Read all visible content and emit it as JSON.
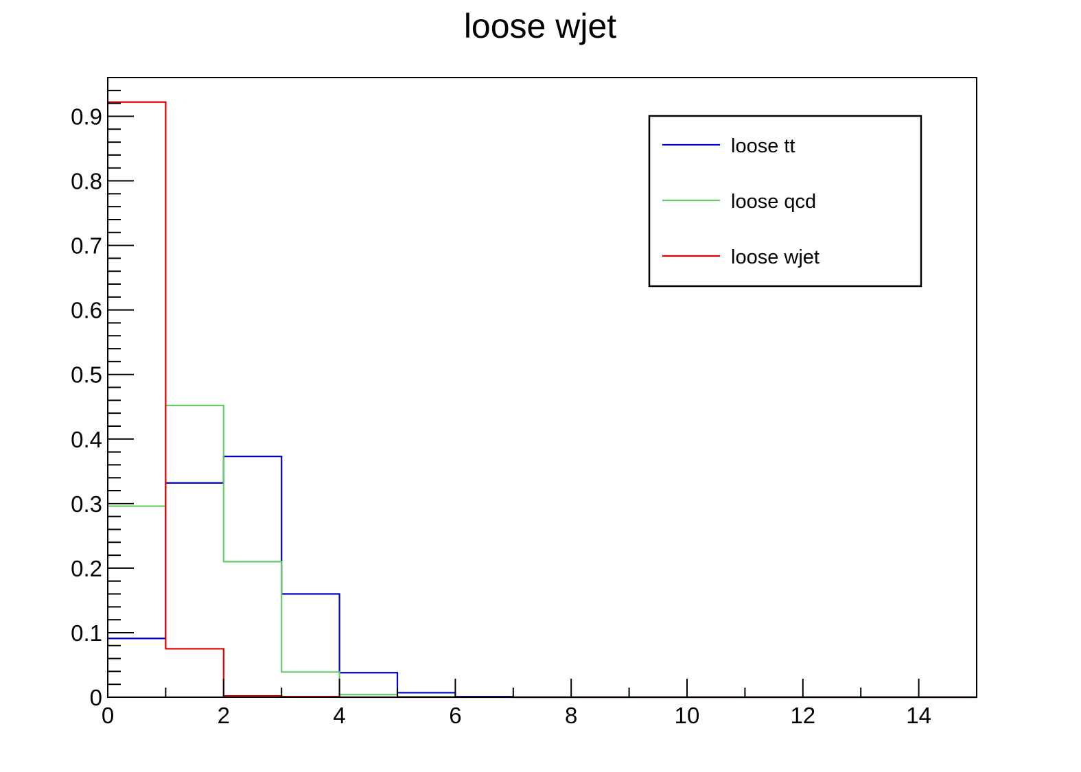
{
  "chart_data": {
    "type": "line",
    "subtype": "step-histogram",
    "title": "loose wjet",
    "xlabel": "",
    "ylabel": "",
    "xlim": [
      0,
      15
    ],
    "ylim": [
      0,
      0.96
    ],
    "grid": false,
    "legend_position": "top-right",
    "bin_edges": [
      0,
      1,
      2,
      3,
      4,
      5,
      6,
      7,
      8,
      9,
      10,
      11,
      12,
      13,
      14,
      15
    ],
    "x_ticks": [
      {
        "value": 0,
        "label": "0"
      },
      {
        "value": 2,
        "label": "2"
      },
      {
        "value": 4,
        "label": "4"
      },
      {
        "value": 6,
        "label": "6"
      },
      {
        "value": 8,
        "label": "8"
      },
      {
        "value": 10,
        "label": "10"
      },
      {
        "value": 12,
        "label": "12"
      },
      {
        "value": 14,
        "label": "14"
      }
    ],
    "y_ticks": [
      {
        "value": 0,
        "label": "0"
      },
      {
        "value": 0.1,
        "label": "0.1"
      },
      {
        "value": 0.2,
        "label": "0.2"
      },
      {
        "value": 0.3,
        "label": "0.3"
      },
      {
        "value": 0.4,
        "label": "0.4"
      },
      {
        "value": 0.5,
        "label": "0.5"
      },
      {
        "value": 0.6,
        "label": "0.6"
      },
      {
        "value": 0.7,
        "label": "0.7"
      },
      {
        "value": 0.8,
        "label": "0.8"
      },
      {
        "value": 0.9,
        "label": "0.9"
      }
    ],
    "series": [
      {
        "name": "loose tt",
        "color": "#0000cc",
        "values": [
          0.091,
          0.332,
          0.373,
          0.16,
          0.038,
          0.007,
          0.001,
          0,
          0,
          0,
          0,
          0,
          0,
          0,
          0
        ]
      },
      {
        "name": "loose qcd",
        "color": "#66cc66",
        "values": [
          0.296,
          0.452,
          0.21,
          0.039,
          0.004,
          0.001,
          0,
          0,
          0,
          0,
          0,
          0,
          0,
          0,
          0
        ]
      },
      {
        "name": "loose wjet",
        "color": "#dd0000",
        "values": [
          0.922,
          0.075,
          0.002,
          0.001,
          0,
          0,
          0,
          0,
          0,
          0,
          0,
          0,
          0,
          0,
          0
        ]
      }
    ]
  }
}
